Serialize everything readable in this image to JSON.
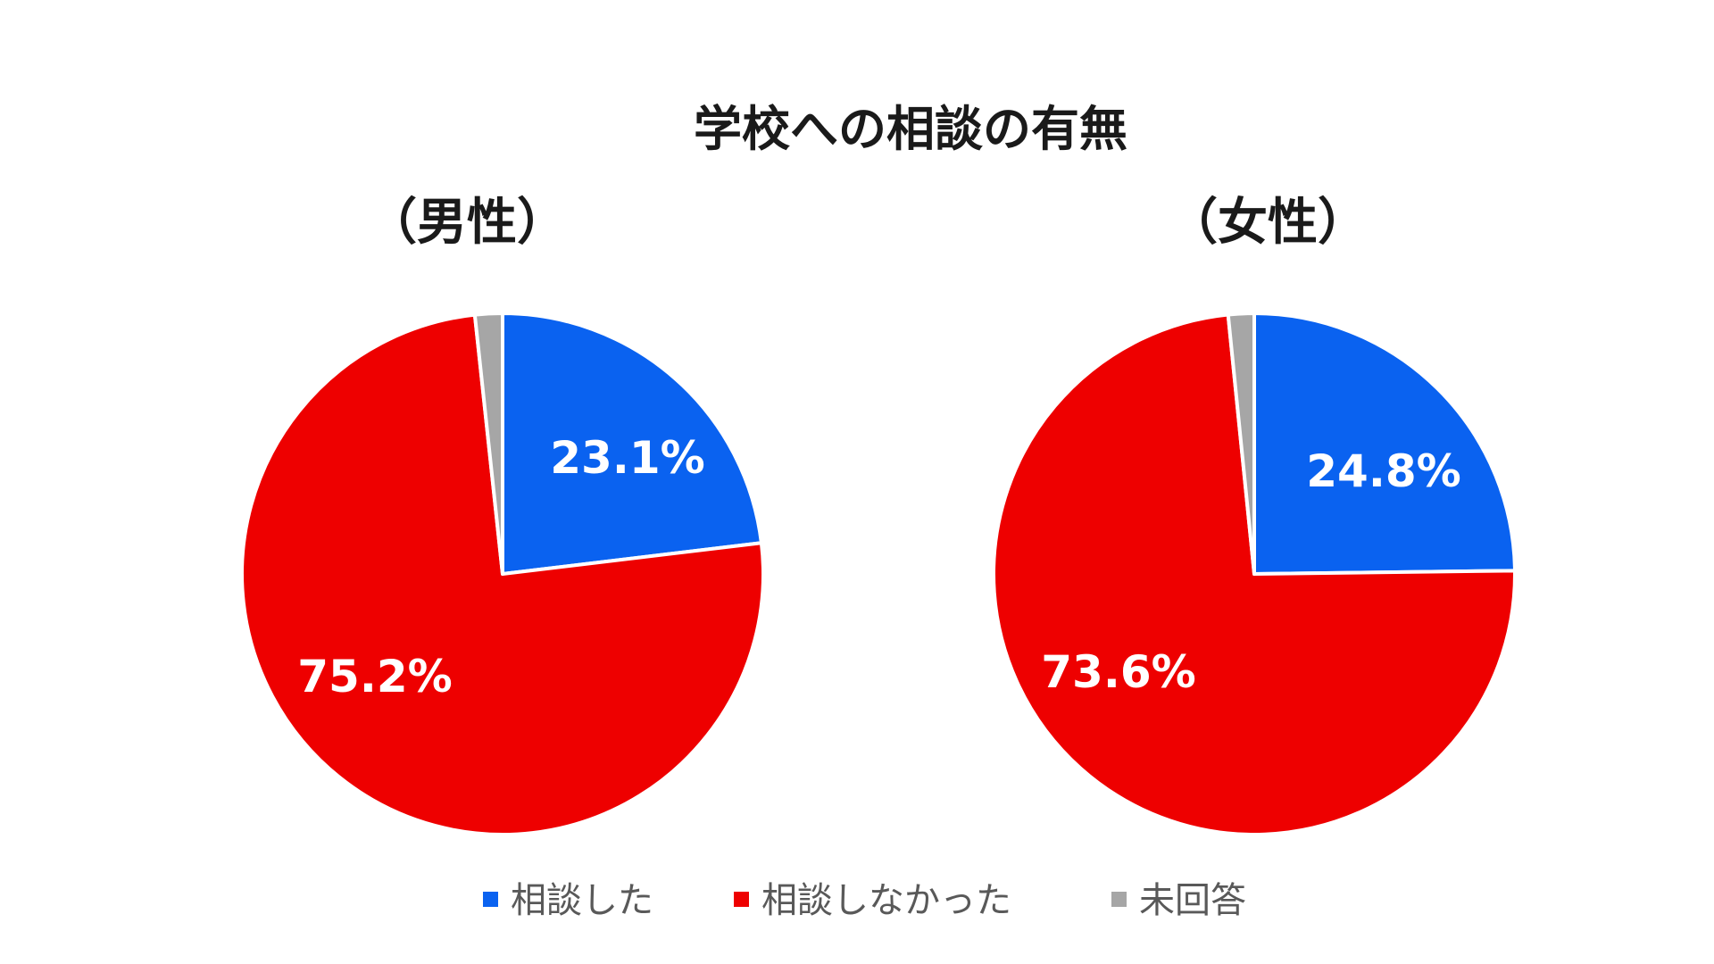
{
  "chart_data": {
    "type": "pie",
    "title": "学校への相談の有無",
    "legend_position": "bottom",
    "categories": [
      "相談した",
      "相談しなかった",
      "未回答"
    ],
    "colors": [
      "#0a62f0",
      "#ee0000",
      "#a6a6a6"
    ],
    "pies": [
      {
        "name": "（男性）",
        "values": [
          23.1,
          75.2,
          1.7
        ],
        "labels": [
          "23.1%",
          "75.2%",
          ""
        ]
      },
      {
        "name": "（女性）",
        "values": [
          24.8,
          73.6,
          1.6
        ],
        "labels": [
          "24.8%",
          "73.6%",
          ""
        ]
      }
    ]
  }
}
